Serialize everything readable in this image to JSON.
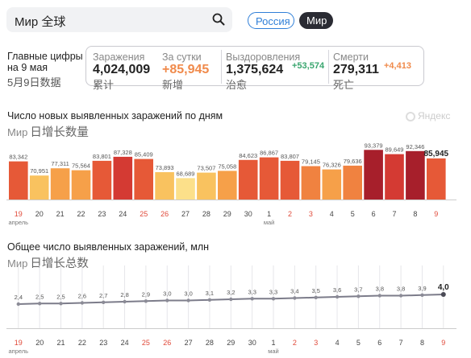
{
  "search": {
    "value": "Мир 全球"
  },
  "region_tabs": {
    "russia": "Россия",
    "world": "Мир"
  },
  "header": {
    "title": "Главные цифры на 9 мая",
    "subtitle": "5月9日数据"
  },
  "stats": {
    "cases": {
      "label": "Заражения",
      "value": "4,024,009",
      "cn": "累计"
    },
    "daily": {
      "label": "За сутки",
      "value": "+85,945",
      "cn": "新增"
    },
    "recovered": {
      "label": "Выздоровления",
      "value": "1,375,624",
      "delta": "+53,574",
      "cn": "治愈"
    },
    "deaths": {
      "label": "Смерти",
      "value": "279,311",
      "delta": "+4,413",
      "cn": "死亡"
    }
  },
  "watermark": "Яндекс",
  "colors": {
    "accent_blue": "#2f7fd8",
    "orange": "#f08a4b",
    "green": "#3aa66f",
    "weekend_red": "#e04a3a"
  },
  "chart_daily": {
    "title": "Число новых выявленных заражений по дням",
    "subtitle_ru": "Мир",
    "subtitle_cn": "日增长数量"
  },
  "chart_total": {
    "title": "Общее число выявленных заражений, млн",
    "subtitle_ru": "Мир",
    "subtitle_cn": "日增长总数"
  },
  "chart_data": [
    {
      "type": "bar",
      "title": "Число новых выявленных заражений по дням",
      "categories": [
        "19",
        "20",
        "21",
        "22",
        "23",
        "24",
        "25",
        "26",
        "27",
        "28",
        "29",
        "30",
        "1",
        "2",
        "3",
        "4",
        "5",
        "6",
        "7",
        "8",
        "9"
      ],
      "category_sublabels": {
        "0": "апрель",
        "12": "май"
      },
      "weekend_indices": [
        0,
        6,
        7,
        13,
        14,
        20
      ],
      "values": [
        83342,
        70951,
        77311,
        75564,
        83801,
        87328,
        85409,
        73893,
        68689,
        73507,
        75058,
        84623,
        86867,
        83807,
        79145,
        76326,
        79636,
        93379,
        89649,
        92346,
        85945
      ],
      "value_labels": [
        "83,342",
        "70,951",
        "77,311",
        "75,564",
        "83,801",
        "87,328",
        "85,409",
        "73,893",
        "68,689",
        "73,507",
        "75,058",
        "84,623",
        "86,867",
        "83,807",
        "79,145",
        "76,326",
        "79,636",
        "93,379",
        "89,649",
        "92,346",
        "85,945"
      ],
      "ylim": [
        0,
        95000
      ],
      "grid": false
    },
    {
      "type": "line",
      "title": "Общее число выявленных заражений, млн",
      "categories": [
        "19",
        "20",
        "21",
        "22",
        "23",
        "24",
        "25",
        "26",
        "27",
        "28",
        "29",
        "30",
        "1",
        "2",
        "3",
        "4",
        "5",
        "6",
        "7",
        "8",
        "9"
      ],
      "category_sublabels": {
        "0": "апрель",
        "12": "май"
      },
      "weekend_indices": [
        0,
        6,
        7,
        13,
        14,
        20
      ],
      "values": [
        2.4,
        2.5,
        2.5,
        2.6,
        2.7,
        2.8,
        2.9,
        3.0,
        3.0,
        3.1,
        3.2,
        3.3,
        3.3,
        3.4,
        3.5,
        3.6,
        3.7,
        3.8,
        3.8,
        3.9,
        4.0
      ],
      "value_labels": [
        "2,4",
        "2,5",
        "2,5",
        "2,6",
        "2,7",
        "2,8",
        "2,9",
        "3,0",
        "3,0",
        "3,1",
        "3,2",
        "3,3",
        "3,3",
        "3,4",
        "3,5",
        "3,6",
        "3,7",
        "3,8",
        "3,8",
        "3,9",
        "4,0"
      ],
      "ylim": [
        0,
        4.6
      ],
      "grid": false
    }
  ]
}
